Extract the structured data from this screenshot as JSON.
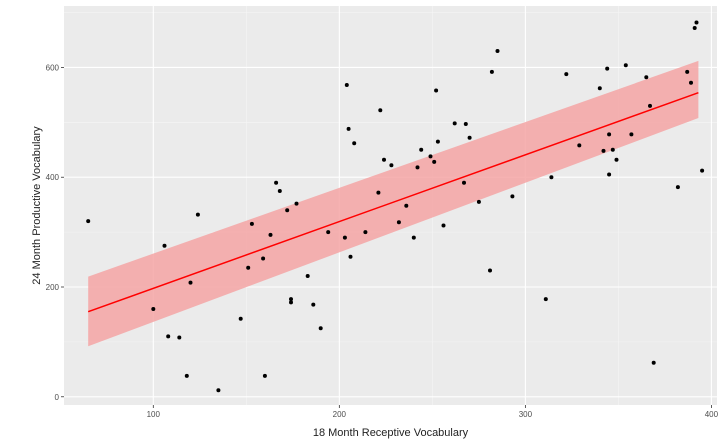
{
  "chart_data": {
    "type": "scatter",
    "title": "",
    "xlabel": "18 Month Receptive Vocabulary",
    "ylabel": "24 Month Productive Vocabulary",
    "xlim": [
      52,
      403
    ],
    "ylim": [
      -15,
      712
    ],
    "x_ticks": [
      100,
      200,
      300,
      400
    ],
    "y_ticks": [
      0,
      200,
      400,
      600
    ],
    "grid": true,
    "legend": "none",
    "colors": {
      "panel": "#ebebeb",
      "grid_major": "#ffffff",
      "grid_minor": "#f5f5f5",
      "points": "#000000",
      "fit_line": "#ff0000",
      "confidence_band": "#f4a5a5"
    },
    "points": [
      [
        65,
        320
      ],
      [
        100,
        160
      ],
      [
        106,
        275
      ],
      [
        108,
        110
      ],
      [
        114,
        108
      ],
      [
        118,
        38
      ],
      [
        120,
        208
      ],
      [
        124,
        332
      ],
      [
        135,
        12
      ],
      [
        147,
        142
      ],
      [
        151,
        235
      ],
      [
        153,
        315
      ],
      [
        159,
        252
      ],
      [
        160,
        38
      ],
      [
        163,
        295
      ],
      [
        166,
        390
      ],
      [
        168,
        375
      ],
      [
        172,
        340
      ],
      [
        174,
        178
      ],
      [
        174,
        172
      ],
      [
        177,
        352
      ],
      [
        183,
        220
      ],
      [
        186,
        168
      ],
      [
        190,
        125
      ],
      [
        194,
        300
      ],
      [
        203,
        290
      ],
      [
        204,
        568
      ],
      [
        205,
        488
      ],
      [
        206,
        255
      ],
      [
        208,
        462
      ],
      [
        214,
        300
      ],
      [
        221,
        372
      ],
      [
        222,
        522
      ],
      [
        224,
        432
      ],
      [
        228,
        422
      ],
      [
        232,
        318
      ],
      [
        236,
        348
      ],
      [
        240,
        290
      ],
      [
        242,
        418
      ],
      [
        244,
        450
      ],
      [
        249,
        438
      ],
      [
        251,
        428
      ],
      [
        252,
        558
      ],
      [
        253,
        465
      ],
      [
        256,
        312
      ],
      [
        262,
        498
      ],
      [
        267,
        390
      ],
      [
        268,
        497
      ],
      [
        270,
        472
      ],
      [
        275,
        355
      ],
      [
        281,
        230
      ],
      [
        282,
        592
      ],
      [
        285,
        630
      ],
      [
        293,
        365
      ],
      [
        311,
        178
      ],
      [
        314,
        400
      ],
      [
        322,
        588
      ],
      [
        329,
        458
      ],
      [
        340,
        562
      ],
      [
        342,
        448
      ],
      [
        344,
        598
      ],
      [
        345,
        478
      ],
      [
        345,
        405
      ],
      [
        347,
        450
      ],
      [
        349,
        432
      ],
      [
        354,
        604
      ],
      [
        357,
        478
      ],
      [
        365,
        582
      ],
      [
        367,
        530
      ],
      [
        369,
        62
      ],
      [
        382,
        382
      ],
      [
        387,
        592
      ],
      [
        389,
        572
      ],
      [
        391,
        672
      ],
      [
        392,
        682
      ],
      [
        395,
        412
      ]
    ],
    "fit": {
      "method": "linear",
      "x": [
        65,
        393
      ],
      "y": [
        155,
        554
      ],
      "band_lower": [
        92,
        508
      ],
      "band_upper": [
        219,
        612
      ]
    }
  }
}
